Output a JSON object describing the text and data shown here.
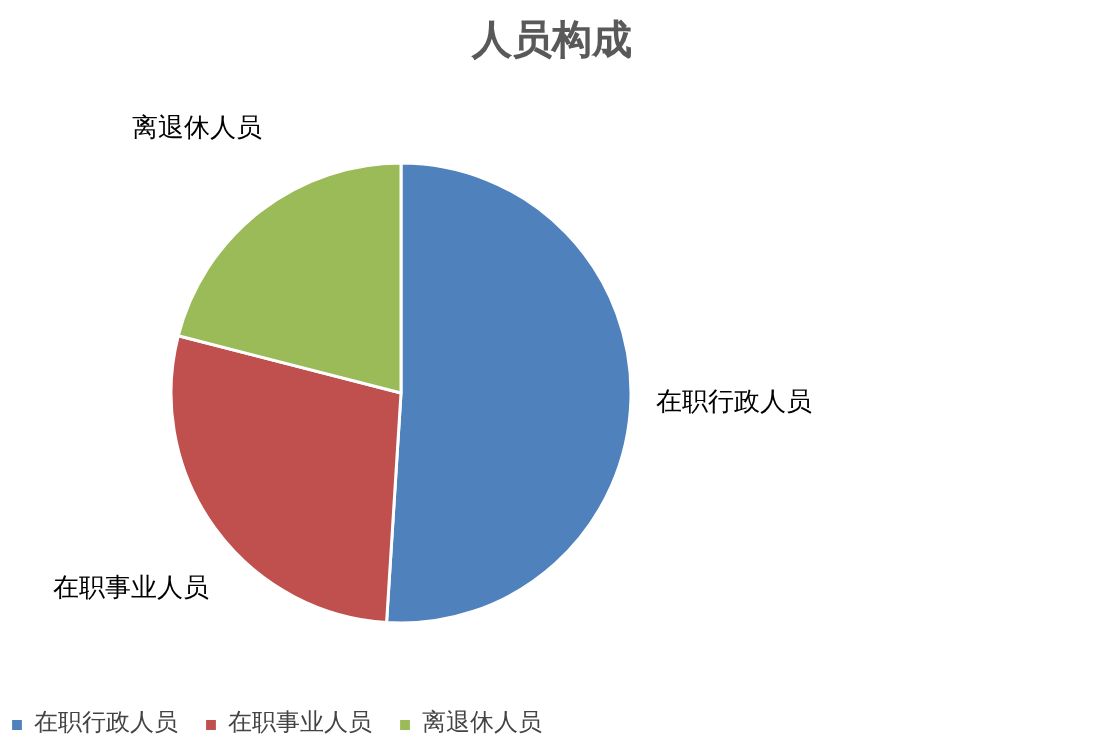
{
  "chart_data": {
    "type": "pie",
    "title": "人员构成",
    "categories": [
      "在职行政人员",
      "在职事业人员",
      "离退休人员"
    ],
    "values": [
      51,
      28,
      21
    ],
    "colors": [
      "#4f81bd",
      "#c0504d",
      "#9bbb59"
    ],
    "legend": "bottom left"
  }
}
